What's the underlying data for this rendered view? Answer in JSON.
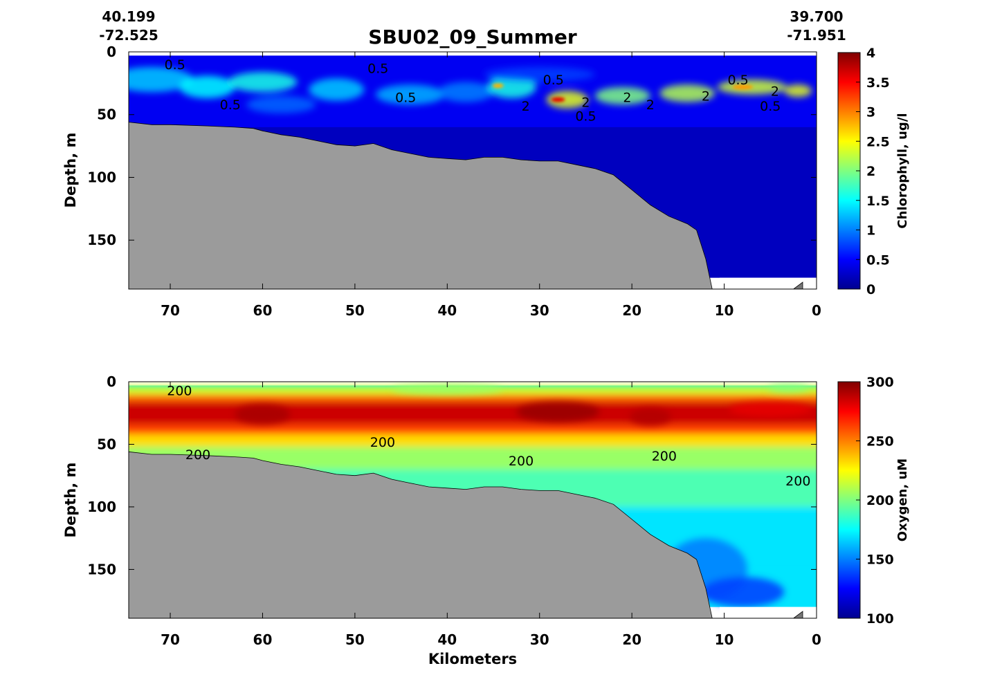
{
  "figure": {
    "title": "SBU02_09_Summer",
    "start_lat": "40.199",
    "start_lon": "-72.525",
    "end_lat": "39.700",
    "end_lon": "-71.951",
    "xlabel": "Kilometers"
  },
  "chart_data": [
    {
      "type": "heatmap",
      "variable": "Chlorophyll",
      "ylabel": "Depth, m",
      "colorbar_label": "Chlorophyll, ug/l",
      "colormap": "jet",
      "colorbar_range": [
        0,
        4
      ],
      "colorbar_ticks": [
        "0",
        "0.5",
        "1",
        "1.5",
        "2",
        "2.5",
        "3",
        "3.5",
        "4"
      ],
      "x_range": [
        74.5,
        0
      ],
      "x_ticks": [
        "70",
        "60",
        "50",
        "40",
        "30",
        "20",
        "10",
        "0"
      ],
      "y_range": [
        0,
        189
      ],
      "y_ticks": [
        "0",
        "50",
        "100",
        "150"
      ],
      "background_value": 0.25,
      "contour_labels": [
        {
          "text": "0.5",
          "x": 69.5,
          "y": 10
        },
        {
          "text": "0.5",
          "x": 47.5,
          "y": 13
        },
        {
          "text": "0.5",
          "x": 44.5,
          "y": 36
        },
        {
          "text": "0.5",
          "x": 63.5,
          "y": 42
        },
        {
          "text": "0.5",
          "x": 28.5,
          "y": 22
        },
        {
          "text": "0.5",
          "x": 25.0,
          "y": 51
        },
        {
          "text": "0.5",
          "x": 8.5,
          "y": 22
        },
        {
          "text": "0.5",
          "x": 5.0,
          "y": 43
        },
        {
          "text": "2",
          "x": 31.5,
          "y": 43
        },
        {
          "text": "2",
          "x": 25.0,
          "y": 40
        },
        {
          "text": "2",
          "x": 20.5,
          "y": 36
        },
        {
          "text": "2",
          "x": 18.0,
          "y": 42
        },
        {
          "text": "2",
          "x": 12.0,
          "y": 35
        },
        {
          "text": "2",
          "x": 4.5,
          "y": 31
        }
      ]
    },
    {
      "type": "heatmap",
      "variable": "Oxygen",
      "ylabel": "Depth, m",
      "colorbar_label": "Oxygen, uM",
      "colormap": "jet",
      "colorbar_range": [
        100,
        300
      ],
      "colorbar_ticks": [
        "100",
        "150",
        "200",
        "250",
        "300"
      ],
      "x_range": [
        74.5,
        0
      ],
      "x_ticks": [
        "70",
        "60",
        "50",
        "40",
        "30",
        "20",
        "10",
        "0"
      ],
      "y_range": [
        0,
        189
      ],
      "y_ticks": [
        "0",
        "50",
        "100",
        "150"
      ],
      "contour_labels": [
        {
          "text": "200",
          "x": 69.0,
          "y": 7
        },
        {
          "text": "200",
          "x": 67.0,
          "y": 58
        },
        {
          "text": "200",
          "x": 47.0,
          "y": 48
        },
        {
          "text": "200",
          "x": 32.0,
          "y": 63
        },
        {
          "text": "200",
          "x": 16.5,
          "y": 59
        },
        {
          "text": "200",
          "x": 2.0,
          "y": 79
        }
      ]
    }
  ],
  "bathymetry": {
    "x": [
      74.5,
      72,
      70,
      66,
      63,
      61,
      60,
      58,
      56,
      54,
      52,
      50,
      48,
      46,
      44,
      42,
      40,
      38,
      36,
      34,
      32,
      30,
      28,
      26,
      24,
      22,
      20,
      18,
      16,
      14,
      13,
      12,
      11.3
    ],
    "depth": [
      56,
      58,
      58,
      59,
      60,
      61,
      63,
      66,
      68,
      71,
      74,
      75,
      73,
      78,
      81,
      84,
      85,
      86,
      84,
      84,
      86,
      87,
      87,
      90,
      93,
      98,
      110,
      122,
      131,
      137,
      142,
      165,
      189
    ]
  },
  "colors": {
    "seafloor": "#9b9b9b",
    "background": "#ffffff"
  }
}
